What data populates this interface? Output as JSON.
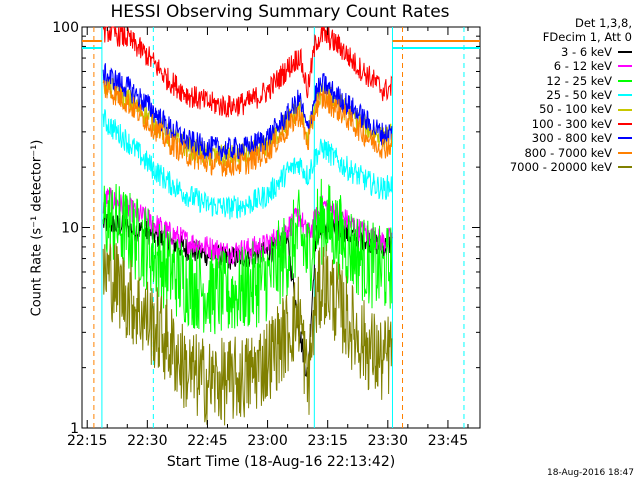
{
  "colors": {
    "background": "#ffffff",
    "axis": "#000000"
  },
  "chart_data": {
    "type": "line",
    "title": "HESSI Observing Summary Count Rates",
    "xlabel": "Start Time (18-Aug-16 22:13:42)",
    "ylabel": "Count Rate (s⁻¹ detector⁻¹)",
    "y_scale": "log",
    "ylim": [
      1,
      100
    ],
    "xlim": [
      "22:13:42",
      "23:53:00"
    ],
    "x_ticks": [
      "22:15",
      "22:30",
      "22:45",
      "23:00",
      "23:15",
      "23:30",
      "23:45"
    ],
    "y_ticks": [
      "1",
      "10",
      "100"
    ],
    "legend_header": [
      "Det 1,3,8,",
      "FDecim 1, Att 0"
    ],
    "legend_position": "right, outside plot",
    "timestamp": "18-Aug-2016 18:47",
    "vertical_markers": [
      {
        "time": "22:16:40",
        "color": "#ff8000",
        "style": "dashed"
      },
      {
        "time": "22:18:40",
        "color": "#00ffff",
        "style": "solid"
      },
      {
        "time": "22:31:30",
        "color": "#00ffff",
        "style": "dashed"
      },
      {
        "time": "23:11:40",
        "color": "#00ffff",
        "style": "solid"
      },
      {
        "time": "23:31:10",
        "color": "#00ffff",
        "style": "solid"
      },
      {
        "time": "23:33:40",
        "color": "#ff8000",
        "style": "dashed"
      },
      {
        "time": "23:49:00",
        "color": "#00ffff",
        "style": "dashed"
      }
    ],
    "series": [
      {
        "name": "3 - 6 keV",
        "color": "#000000",
        "x": [
          "22:19",
          "22:20",
          "22:25",
          "22:30",
          "22:35",
          "22:40",
          "22:45",
          "22:50",
          "22:55",
          "23:00",
          "23:05",
          "23:08",
          "23:10",
          "23:12",
          "23:14",
          "23:18",
          "23:22",
          "23:26",
          "23:29",
          "23:31"
        ],
        "y": [
          10.5,
          10.5,
          10,
          9.5,
          8.5,
          7.8,
          7.3,
          7,
          7.2,
          7.5,
          8.5,
          3,
          1.8,
          9,
          10,
          9.5,
          9,
          8.5,
          8,
          8.3
        ]
      },
      {
        "name": "6 - 12 keV",
        "color": "#ff00ff",
        "x": [
          "22:19",
          "22:20",
          "22:25",
          "22:30",
          "22:35",
          "22:40",
          "22:45",
          "22:50",
          "22:55",
          "23:00",
          "23:05",
          "23:08",
          "23:10",
          "23:12",
          "23:14",
          "23:18",
          "23:22",
          "23:26",
          "23:29",
          "23:31"
        ],
        "y": [
          13,
          14,
          12.5,
          11,
          9.5,
          8.5,
          8,
          7.5,
          7.8,
          8.2,
          10,
          11.5,
          9,
          11,
          13,
          11.5,
          10,
          9,
          8.5,
          8.8
        ]
      },
      {
        "name": "12 - 25 keV",
        "color": "#00ff00",
        "x": [
          "22:19",
          "22:20",
          "22:25",
          "22:30",
          "22:35",
          "22:40",
          "22:45",
          "22:50",
          "22:55",
          "23:00",
          "23:05",
          "23:08",
          "23:10",
          "23:12",
          "23:14",
          "23:18",
          "23:22",
          "23:26",
          "23:29",
          "23:31"
        ],
        "y": [
          11,
          11,
          9.5,
          8,
          6.2,
          5.3,
          4.8,
          4.6,
          5,
          5.6,
          7.5,
          9.5,
          7,
          10,
          11,
          9,
          7.5,
          6.5,
          6,
          6.5
        ]
      },
      {
        "name": "25 - 50 keV",
        "color": "#00ffff",
        "x": [
          "22:19",
          "22:20",
          "22:25",
          "22:30",
          "22:35",
          "22:40",
          "22:45",
          "22:50",
          "22:55",
          "23:00",
          "23:05",
          "23:08",
          "23:10",
          "23:12",
          "23:14",
          "23:18",
          "23:22",
          "23:26",
          "23:29",
          "23:31"
        ],
        "y": [
          35,
          33,
          27,
          21,
          17,
          14.5,
          13,
          12.5,
          13,
          14.5,
          19,
          21,
          18,
          23,
          25,
          21,
          18.5,
          16.5,
          15.5,
          16.5
        ]
      },
      {
        "name": "50 - 100 keV",
        "color": "#c8c800",
        "x": [
          "22:19",
          "22:20",
          "22:25",
          "22:30",
          "22:35",
          "22:40",
          "22:45",
          "22:50",
          "22:55",
          "23:00",
          "23:05",
          "23:08",
          "23:10",
          "23:12",
          "23:14",
          "23:18",
          "23:22",
          "23:26",
          "23:29",
          "23:31"
        ],
        "y": [
          52,
          51,
          44,
          36,
          29,
          25,
          23,
          22.5,
          23,
          26,
          34,
          40,
          28,
          42,
          47,
          41,
          35,
          30,
          28,
          29
        ]
      },
      {
        "name": "100 - 300 keV",
        "color": "#ff0000",
        "x": [
          "22:19",
          "22:20",
          "22:25",
          "22:30",
          "22:35",
          "22:40",
          "22:45",
          "22:50",
          "22:55",
          "23:00",
          "23:05",
          "23:08",
          "23:10",
          "23:12",
          "23:14",
          "23:18",
          "23:22",
          "23:26",
          "23:29",
          "23:31"
        ],
        "y": [
          95,
          96,
          88,
          72,
          55,
          46,
          42,
          40,
          42,
          48,
          62,
          72,
          48,
          85,
          92,
          80,
          65,
          55,
          48,
          50
        ]
      },
      {
        "name": "300 - 800 keV",
        "color": "#0000ff",
        "x": [
          "22:19",
          "22:20",
          "22:25",
          "22:30",
          "22:35",
          "22:40",
          "22:45",
          "22:50",
          "22:55",
          "23:00",
          "23:05",
          "23:08",
          "23:10",
          "23:12",
          "23:14",
          "23:18",
          "23:22",
          "23:26",
          "23:29",
          "23:31"
        ],
        "y": [
          58,
          57,
          50,
          41,
          32,
          27,
          25,
          24.5,
          25,
          28,
          36,
          44,
          30,
          47,
          52,
          44,
          38,
          32,
          29,
          30
        ]
      },
      {
        "name": "800 - 7000 keV",
        "color": "#ff8000",
        "x": [
          "22:19",
          "22:20",
          "22:25",
          "22:30",
          "22:35",
          "22:40",
          "22:45",
          "22:50",
          "22:55",
          "23:00",
          "23:05",
          "23:08",
          "23:10",
          "23:12",
          "23:14",
          "23:18",
          "23:22",
          "23:26",
          "23:29",
          "23:31"
        ],
        "y": [
          50,
          49,
          42,
          34,
          27,
          23,
          21,
          20.5,
          21,
          24,
          31,
          37,
          26,
          40,
          44,
          38,
          32,
          27,
          25,
          26
        ]
      },
      {
        "name": "7000 - 20000 keV",
        "color": "#808000",
        "x": [
          "22:19",
          "22:20",
          "22:25",
          "22:30",
          "22:35",
          "22:40",
          "22:45",
          "22:50",
          "22:55",
          "23:00",
          "23:05",
          "23:08",
          "23:10",
          "23:12",
          "23:14",
          "23:18",
          "23:22",
          "23:26",
          "23:29",
          "23:31"
        ],
        "y": [
          6,
          6,
          4.5,
          3.5,
          2.7,
          1.9,
          1.7,
          1.7,
          1.8,
          2.2,
          3,
          3.8,
          1.6,
          4.2,
          5.5,
          4,
          3,
          2.4,
          2.1,
          2.5
        ]
      }
    ]
  }
}
